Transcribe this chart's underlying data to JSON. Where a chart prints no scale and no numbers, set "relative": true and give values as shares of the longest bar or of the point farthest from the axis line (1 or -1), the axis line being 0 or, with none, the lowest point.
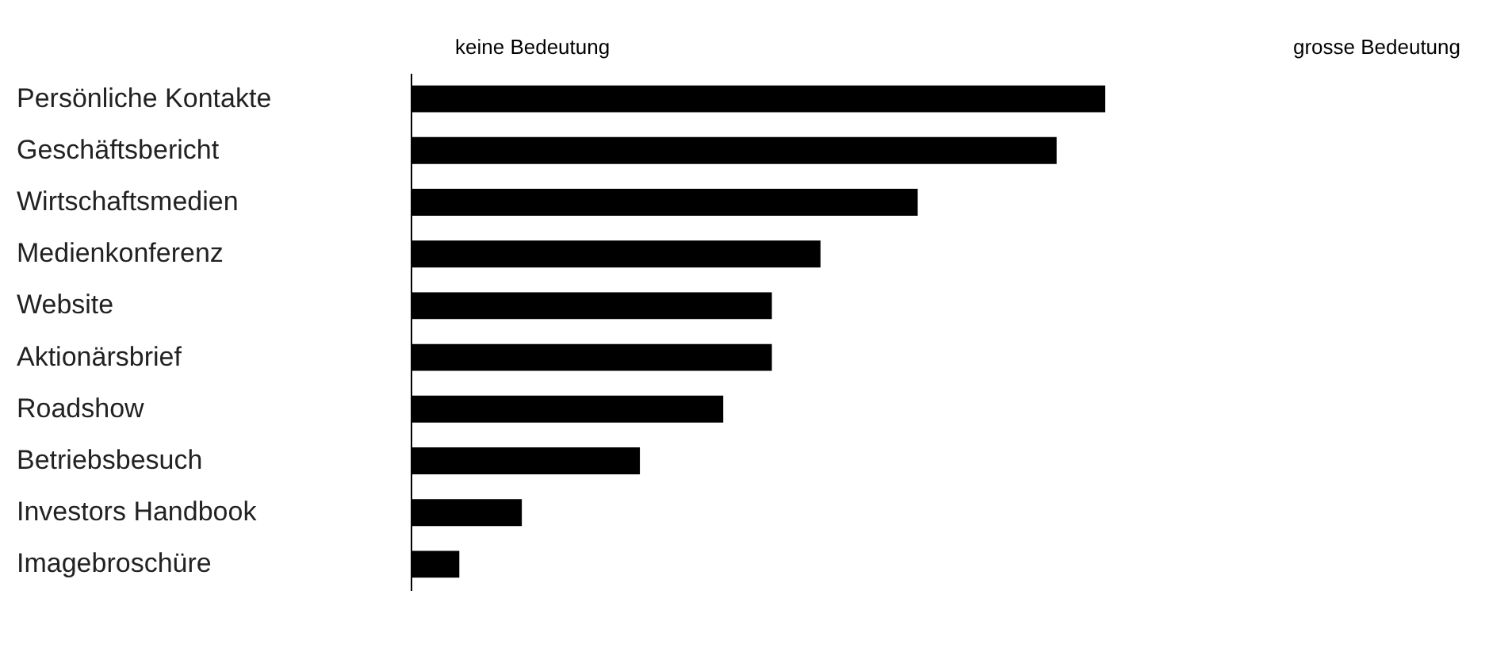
{
  "chart_data": {
    "type": "bar",
    "orientation": "horizontal",
    "relative": true,
    "color": "#000000",
    "categories": [
      "Persönliche Kontakte",
      "Geschäftsbericht",
      "Wirtschaftsmedien",
      "Medienkonferenz",
      "Website",
      "Aktionärsbrief",
      "Roadshow",
      "Betriebsbesuch",
      "Investors Handbook",
      "Imagebroschüre"
    ],
    "values": [
      1,
      0.93,
      0.73,
      0.59,
      0.52,
      0.52,
      0.45,
      0.33,
      0.16,
      0.07
    ],
    "annotations": [
      "keine Bedeutung",
      "grosse Bedeutung"
    ]
  }
}
